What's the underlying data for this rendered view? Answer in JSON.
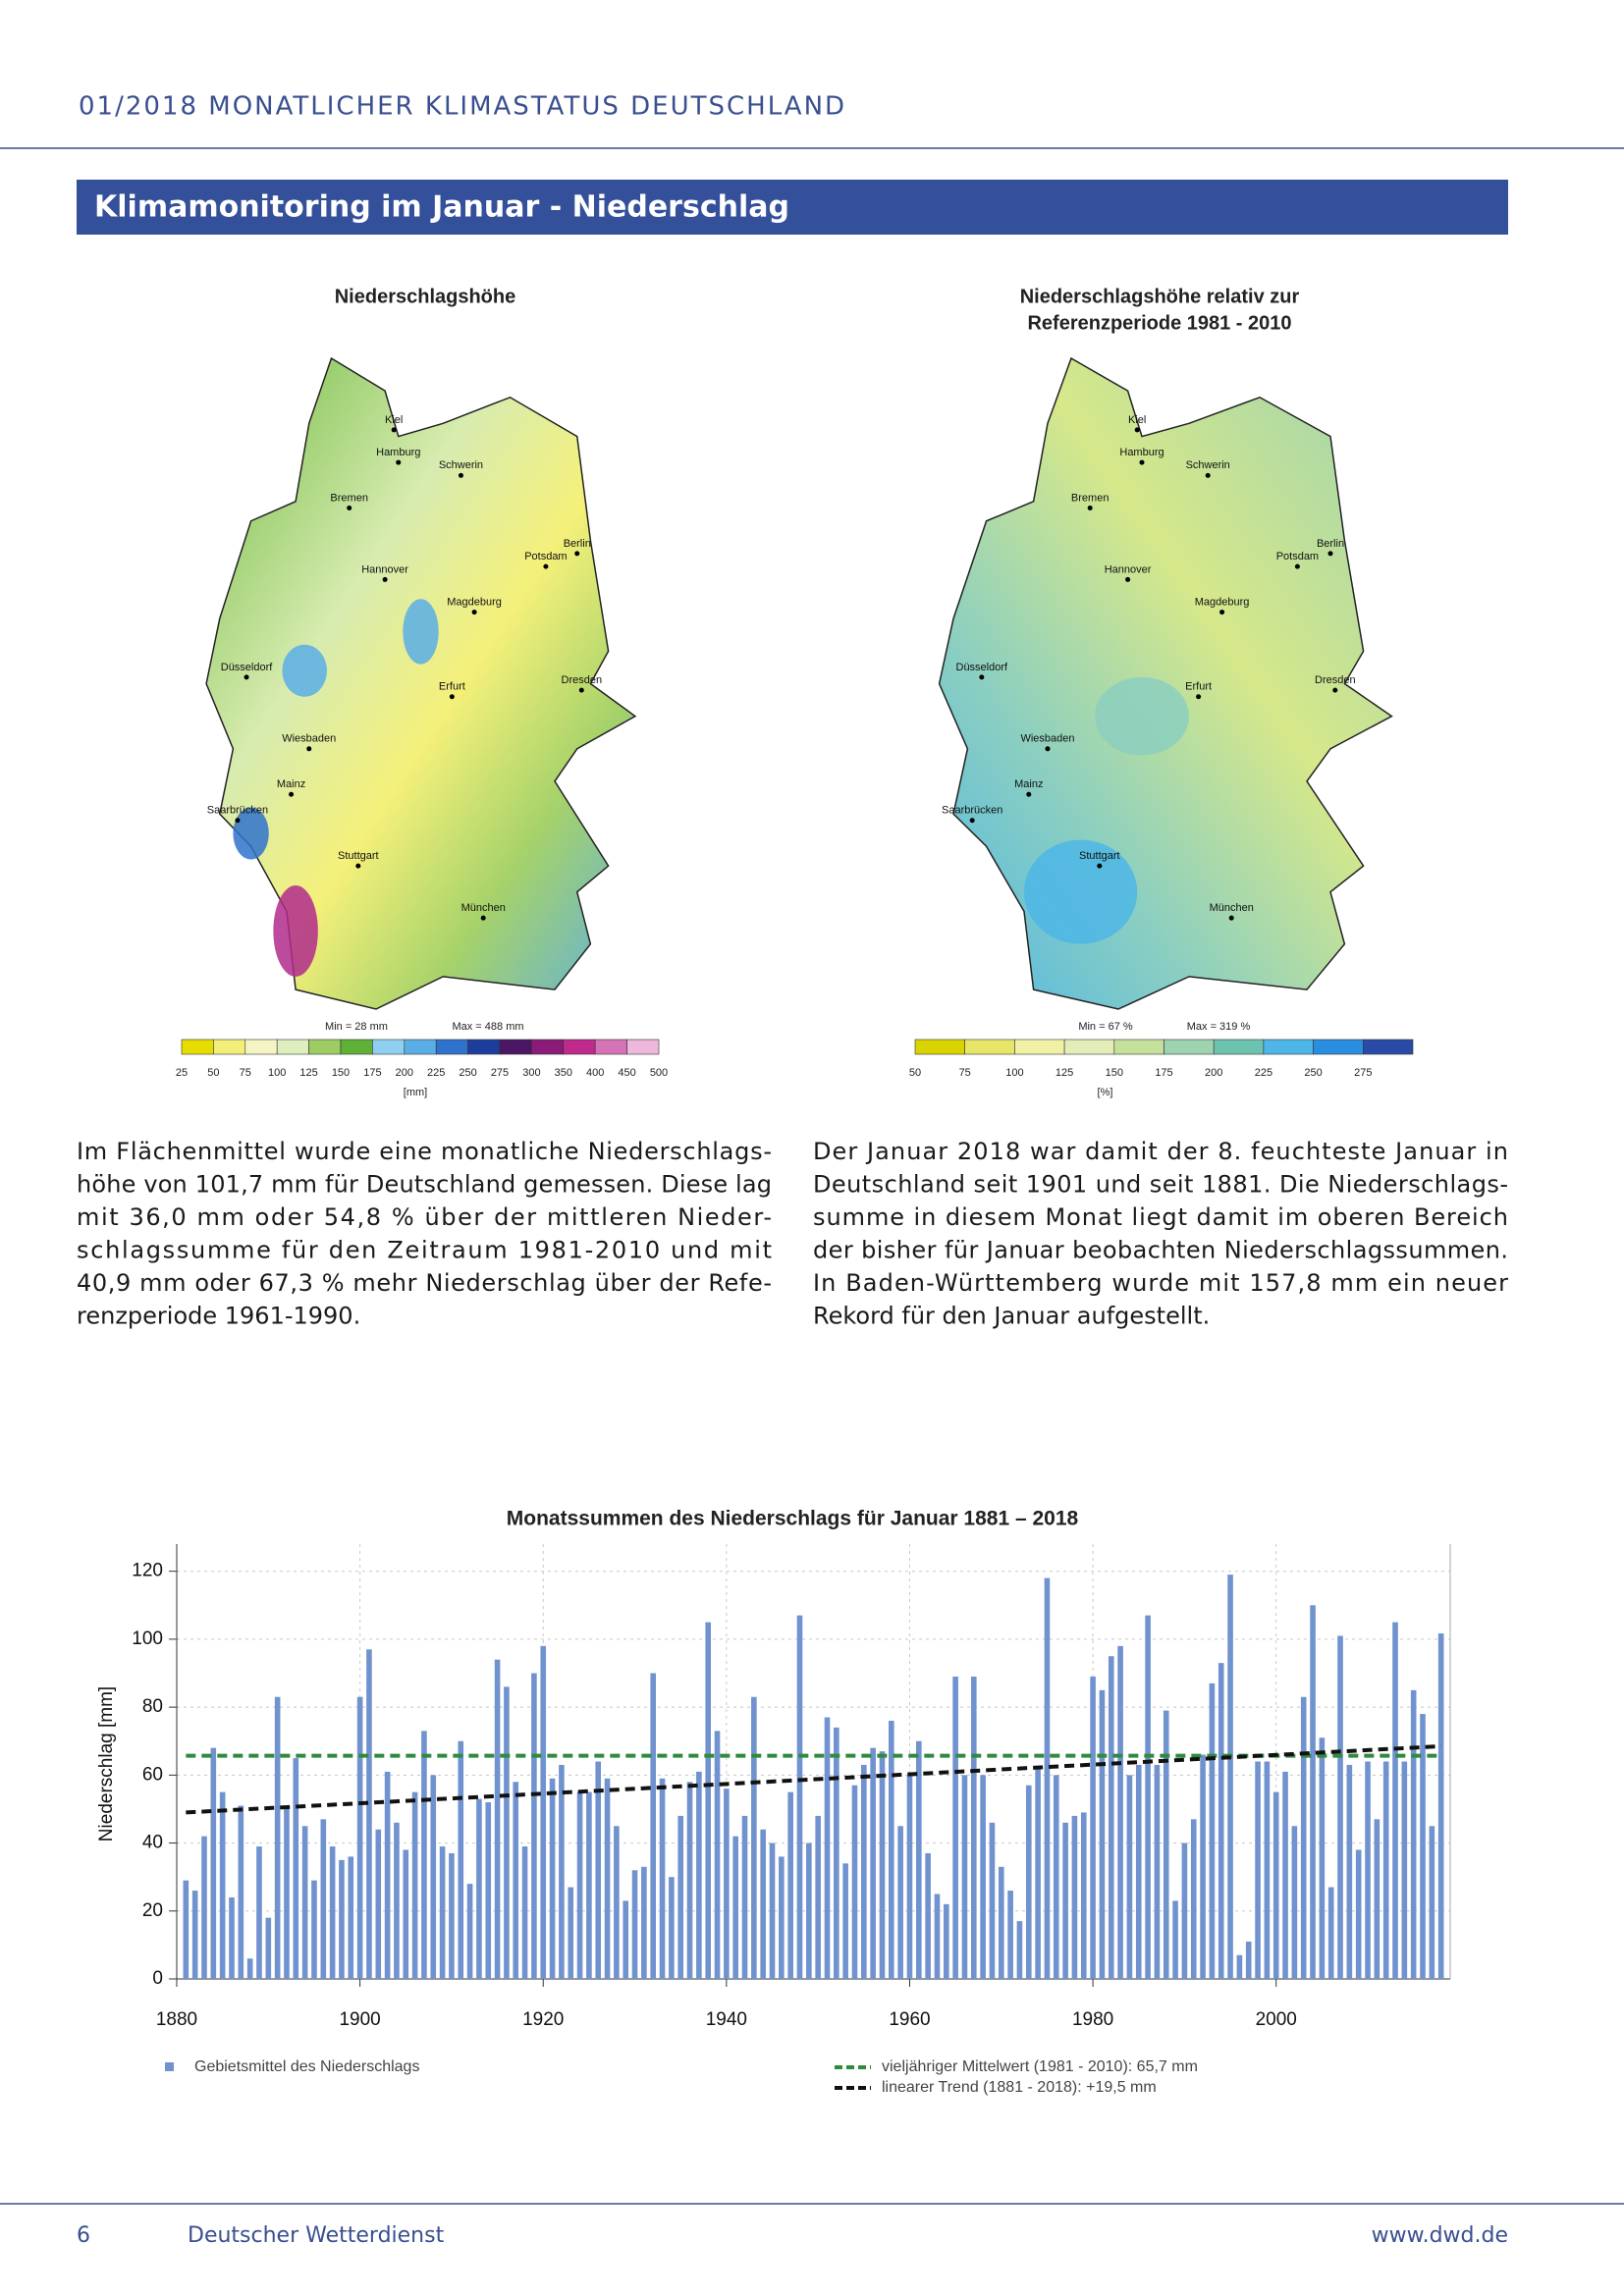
{
  "header": {
    "title": "01/2018  MONATLICHER KLIMASTATUS DEUTSCHLAND"
  },
  "section_title": "Klimamonitoring im Januar - Niederschlag",
  "cities": [
    "Kiel",
    "Hamburg",
    "Schwerin",
    "Bremen",
    "Berlin",
    "Potsdam",
    "Hannover",
    "Magdeburg",
    "Düsseldorf",
    "Erfurt",
    "Dresden",
    "Wiesbaden",
    "Mainz",
    "Saarbrücken",
    "Stuttgart",
    "München"
  ],
  "maps": [
    {
      "title": [
        "Niederschlagshöhe"
      ],
      "min_label": "Min = 28 mm",
      "max_label": "Max = 488 mm",
      "legend_labels": [
        25,
        50,
        75,
        100,
        125,
        150,
        175,
        200,
        225,
        250,
        275,
        300,
        350,
        400,
        450,
        500
      ],
      "legend_colors": [
        "#e6dc00",
        "#f2ee78",
        "#f4f4c4",
        "#dfeebe",
        "#9ccc62",
        "#5eb036",
        "#8fd0f0",
        "#5aaee6",
        "#2f72cc",
        "#1c3d9c",
        "#4b1663",
        "#8a1b78",
        "#c02a8c",
        "#d672b6",
        "#eeb8dc"
      ],
      "unit": "[mm]"
    },
    {
      "title": [
        "Niederschlagshöhe relativ zur",
        "Referenzperiode 1981 - 2010"
      ],
      "min_label": "Min = 67 %",
      "max_label": "Max = 319 %",
      "legend_labels": [
        50,
        75,
        100,
        125,
        150,
        175,
        200,
        225,
        250,
        275
      ],
      "legend_colors": [
        "#d9d400",
        "#e8e668",
        "#f1f1a6",
        "#e2edb8",
        "#c4e09a",
        "#9ed3b0",
        "#6cc4b0",
        "#4eb6e6",
        "#2a8ee0",
        "#2a4aa8"
      ],
      "unit": "[%]"
    }
  ],
  "paragraphs": [
    [
      "Im Flächenmittel wurde eine monatliche Niederschlags-",
      "höhe von 101,7 mm für Deutschland gemessen. Diese lag",
      "mit 36,0 mm oder 54,8 % über der mittleren Nieder-",
      "schlagssumme für den Zeitraum 1981-2010 und mit",
      "40,9 mm oder 67,3 % mehr Niederschlag über der Refe-",
      "renzperiode 1961-1990."
    ],
    [
      "Der Januar 2018 war damit der 8. feuchteste Januar in",
      "Deutschland seit 1901 und seit 1881. Die Niederschlags-",
      "summe in diesem Monat liegt damit im oberen Bereich",
      "der bisher für Januar beobachten Niederschlagssummen.",
      "In Baden-Württemberg wurde mit 157,8 mm ein neuer",
      "Rekord für den Januar aufgestellt."
    ]
  ],
  "chart_data": {
    "type": "bar",
    "title": "Monatssummen des Niederschlags für Januar 1881 – 2018",
    "ylabel": "Niederschlag [mm]",
    "x": [
      1881,
      1882,
      1883,
      1884,
      1885,
      1886,
      1887,
      1888,
      1889,
      1890,
      1891,
      1892,
      1893,
      1894,
      1895,
      1896,
      1897,
      1898,
      1899,
      1900,
      1901,
      1902,
      1903,
      1904,
      1905,
      1906,
      1907,
      1908,
      1909,
      1910,
      1911,
      1912,
      1913,
      1914,
      1915,
      1916,
      1917,
      1918,
      1919,
      1920,
      1921,
      1922,
      1923,
      1924,
      1925,
      1926,
      1927,
      1928,
      1929,
      1930,
      1931,
      1932,
      1933,
      1934,
      1935,
      1936,
      1937,
      1938,
      1939,
      1940,
      1941,
      1942,
      1943,
      1944,
      1945,
      1946,
      1947,
      1948,
      1949,
      1950,
      1951,
      1952,
      1953,
      1954,
      1955,
      1956,
      1957,
      1958,
      1959,
      1960,
      1961,
      1962,
      1963,
      1964,
      1965,
      1966,
      1967,
      1968,
      1969,
      1970,
      1971,
      1972,
      1973,
      1974,
      1975,
      1976,
      1977,
      1978,
      1979,
      1980,
      1981,
      1982,
      1983,
      1984,
      1985,
      1986,
      1987,
      1988,
      1989,
      1990,
      1991,
      1992,
      1993,
      1994,
      1995,
      1996,
      1997,
      1998,
      1999,
      2000,
      2001,
      2002,
      2003,
      2004,
      2005,
      2006,
      2007,
      2008,
      2009,
      2010,
      2011,
      2012,
      2013,
      2014,
      2015,
      2016,
      2017,
      2018
    ],
    "series": [
      {
        "name": "Gebietsmittel des Niederschlags",
        "color": "#7092cf",
        "values": [
          29,
          26,
          42,
          68,
          55,
          24,
          51,
          6,
          39,
          18,
          83,
          50,
          65,
          45,
          29,
          47,
          39,
          35,
          36,
          83,
          97,
          44,
          61,
          46,
          38,
          55,
          73,
          60,
          39,
          37,
          70,
          28,
          53,
          52,
          94,
          86,
          58,
          39,
          90,
          98,
          59,
          63,
          27,
          55,
          55,
          64,
          59,
          45,
          23,
          32,
          33,
          90,
          59,
          30,
          48,
          58,
          61,
          105,
          73,
          56,
          42,
          48,
          83,
          44,
          40,
          36,
          55,
          107,
          40,
          48,
          77,
          74,
          34,
          57,
          63,
          68,
          67,
          76,
          45,
          60,
          70,
          37,
          25,
          22,
          89,
          60,
          89,
          60,
          46,
          33,
          26,
          17,
          57,
          62,
          118,
          60,
          46,
          48,
          49,
          89,
          85,
          95,
          98,
          60,
          63,
          107,
          63,
          79,
          23,
          40,
          47,
          66,
          87,
          93,
          119,
          7,
          11,
          64,
          64,
          55,
          61,
          45,
          83,
          110,
          71,
          27,
          101,
          63,
          38,
          64,
          47,
          64,
          105,
          64,
          85,
          78,
          45,
          101.7
        ]
      }
    ],
    "lines": [
      {
        "name": "vieljähriger Mittelwert (1981 - 2010): 65,7 mm",
        "color": "#2e8b3c",
        "x": [
          1881,
          2018
        ],
        "values": [
          65.7,
          65.7
        ]
      },
      {
        "name": "linearer Trend (1881 - 2018): +19,5 mm",
        "color": "#111111",
        "x": [
          1881,
          2018
        ],
        "values": [
          49,
          68.5
        ]
      }
    ],
    "xlim": [
      1880,
      2019
    ],
    "ylim": [
      0,
      128
    ],
    "xticks": [
      1880,
      1900,
      1920,
      1940,
      1960,
      1980,
      2000
    ],
    "yticks": [
      0,
      20,
      40,
      60,
      80,
      100,
      120
    ],
    "grid": true
  },
  "footer": {
    "page": "6",
    "publisher": "Deutscher Wetterdienst",
    "url": "www.dwd.de"
  }
}
